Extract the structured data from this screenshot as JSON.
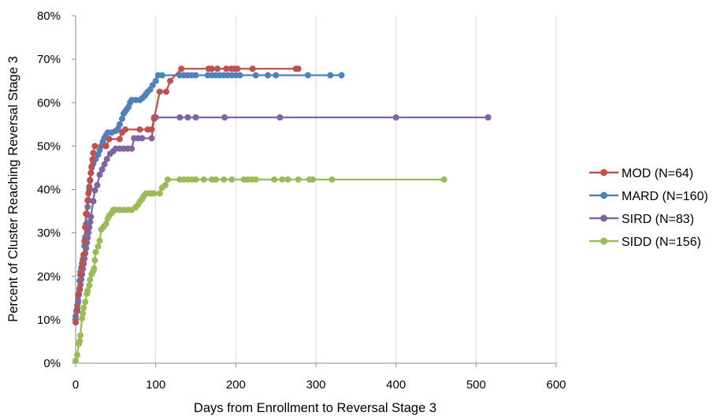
{
  "chart_data": {
    "type": "line",
    "xlabel": "Days from Enrollment to Reversal Stage 3",
    "ylabel": "Percent of Cluster Reaching Reversal Stage 3",
    "xlim": [
      0,
      600
    ],
    "ylim": [
      0,
      80
    ],
    "x_ticks": [
      "0",
      "100",
      "200",
      "300",
      "400",
      "500",
      "600"
    ],
    "y_ticks": [
      "0%",
      "10%",
      "20%",
      "30%",
      "40%",
      "50%",
      "60%",
      "70%",
      "80%"
    ],
    "grid": "vertical",
    "legend_position": "right",
    "series": [
      {
        "name": "MOD (N=64)",
        "color": "#c0504d",
        "points": [
          [
            0,
            9.4
          ],
          [
            2,
            12.5
          ],
          [
            3,
            15.6
          ],
          [
            5,
            17.2
          ],
          [
            6,
            20.3
          ],
          [
            8,
            21.9
          ],
          [
            9,
            23.4
          ],
          [
            10,
            25
          ],
          [
            11,
            28.1
          ],
          [
            12,
            31.3
          ],
          [
            13,
            34.4
          ],
          [
            15,
            37.5
          ],
          [
            16,
            39.1
          ],
          [
            17,
            40.6
          ],
          [
            18,
            42.2
          ],
          [
            19,
            43.8
          ],
          [
            20,
            45.3
          ],
          [
            21,
            46.9
          ],
          [
            22,
            48.4
          ],
          [
            24,
            50
          ],
          [
            38,
            50
          ],
          [
            42,
            51.6
          ],
          [
            55,
            51.6
          ],
          [
            58,
            53.1
          ],
          [
            62,
            53.8
          ],
          [
            80,
            53.8
          ],
          [
            90,
            53.8
          ],
          [
            95,
            53.8
          ],
          [
            98,
            56.3
          ],
          [
            105,
            62.5
          ],
          [
            113,
            62.5
          ],
          [
            118,
            65
          ],
          [
            132,
            67.8
          ],
          [
            166,
            67.8
          ],
          [
            170,
            67.8
          ],
          [
            177,
            67.8
          ],
          [
            188,
            67.8
          ],
          [
            194,
            67.8
          ],
          [
            198,
            67.8
          ],
          [
            202,
            67.8
          ],
          [
            221,
            67.8
          ],
          [
            275,
            67.8
          ],
          [
            278,
            67.8
          ]
        ]
      },
      {
        "name": "MARD (N=160)",
        "color": "#4f81bd",
        "points": [
          [
            0,
            10
          ],
          [
            2,
            12
          ],
          [
            3,
            14
          ],
          [
            4,
            16
          ],
          [
            5,
            19
          ],
          [
            6,
            21
          ],
          [
            7,
            22
          ],
          [
            8,
            23
          ],
          [
            9,
            24
          ],
          [
            10,
            25
          ],
          [
            11,
            27
          ],
          [
            12,
            29
          ],
          [
            13,
            32
          ],
          [
            14,
            34.4
          ],
          [
            15,
            36
          ],
          [
            16,
            37.5
          ],
          [
            17,
            40
          ],
          [
            18,
            42
          ],
          [
            19,
            43.8
          ],
          [
            20,
            45
          ],
          [
            22,
            46
          ],
          [
            25,
            47
          ],
          [
            28,
            48
          ],
          [
            30,
            49
          ],
          [
            32,
            50
          ],
          [
            34,
            51
          ],
          [
            36,
            51.9
          ],
          [
            38,
            52.5
          ],
          [
            40,
            53.1
          ],
          [
            45,
            53.1
          ],
          [
            50,
            53.5
          ],
          [
            53,
            54
          ],
          [
            55,
            55
          ],
          [
            58,
            56.3
          ],
          [
            60,
            57.5
          ],
          [
            62,
            58
          ],
          [
            64,
            58.5
          ],
          [
            66,
            59
          ],
          [
            68,
            60
          ],
          [
            70,
            60.6
          ],
          [
            75,
            60.6
          ],
          [
            80,
            60.6
          ],
          [
            83,
            61
          ],
          [
            86,
            61.5
          ],
          [
            88,
            62
          ],
          [
            90,
            62.5
          ],
          [
            93,
            63
          ],
          [
            96,
            64
          ],
          [
            100,
            65
          ],
          [
            103,
            66.3
          ],
          [
            108,
            66.3
          ],
          [
            130,
            66.3
          ],
          [
            135,
            66.3
          ],
          [
            140,
            66.3
          ],
          [
            145,
            66.3
          ],
          [
            150,
            66.3
          ],
          [
            165,
            66.3
          ],
          [
            170,
            66.3
          ],
          [
            175,
            66.3
          ],
          [
            180,
            66.3
          ],
          [
            185,
            66.3
          ],
          [
            190,
            66.3
          ],
          [
            195,
            66.3
          ],
          [
            200,
            66.3
          ],
          [
            205,
            66.3
          ],
          [
            225,
            66.3
          ],
          [
            240,
            66.3
          ],
          [
            250,
            66.3
          ],
          [
            290,
            66.3
          ],
          [
            318,
            66.3
          ],
          [
            332,
            66.3
          ]
        ]
      },
      {
        "name": "SIRD (N=83)",
        "color": "#8064a2",
        "points": [
          [
            0,
            10.8
          ],
          [
            1,
            12
          ],
          [
            2,
            13.3
          ],
          [
            3,
            14.5
          ],
          [
            4,
            15.7
          ],
          [
            5,
            16.9
          ],
          [
            6,
            18.1
          ],
          [
            7,
            19.3
          ],
          [
            8,
            20.5
          ],
          [
            9,
            21.7
          ],
          [
            10,
            22.9
          ],
          [
            11,
            24.1
          ],
          [
            12,
            25.3
          ],
          [
            13,
            26.5
          ],
          [
            14,
            27.7
          ],
          [
            15,
            28.9
          ],
          [
            16,
            30.1
          ],
          [
            17,
            31.3
          ],
          [
            18,
            32.5
          ],
          [
            19,
            33.7
          ],
          [
            22,
            37.3
          ],
          [
            24,
            39.8
          ],
          [
            27,
            41
          ],
          [
            30,
            43.4
          ],
          [
            33,
            44.6
          ],
          [
            36,
            45.8
          ],
          [
            39,
            47
          ],
          [
            43,
            48.2
          ],
          [
            47,
            48.8
          ],
          [
            50,
            49.4
          ],
          [
            55,
            49.4
          ],
          [
            60,
            49.4
          ],
          [
            65,
            49.4
          ],
          [
            70,
            49.4
          ],
          [
            73,
            51.8
          ],
          [
            78,
            51.8
          ],
          [
            83,
            51.8
          ],
          [
            95,
            51.8
          ],
          [
            98,
            56.6
          ],
          [
            100,
            56.6
          ],
          [
            130,
            56.6
          ],
          [
            140,
            56.6
          ],
          [
            150,
            56.6
          ],
          [
            186,
            56.6
          ],
          [
            255,
            56.6
          ],
          [
            400,
            56.6
          ],
          [
            515,
            56.6
          ]
        ]
      },
      {
        "name": "SIDD (N=156)",
        "color": "#9bbb59",
        "points": [
          [
            0,
            0.6
          ],
          [
            2,
            1.9
          ],
          [
            4,
            4.5
          ],
          [
            5,
            5.1
          ],
          [
            6,
            6.4
          ],
          [
            8,
            10.3
          ],
          [
            9,
            11.5
          ],
          [
            10,
            12.8
          ],
          [
            12,
            14.1
          ],
          [
            14,
            16
          ],
          [
            15,
            16.7
          ],
          [
            17,
            17.9
          ],
          [
            18,
            19.2
          ],
          [
            20,
            20.5
          ],
          [
            22,
            21.2
          ],
          [
            23,
            21.8
          ],
          [
            24,
            23.7
          ],
          [
            25,
            25.6
          ],
          [
            28,
            26.9
          ],
          [
            30,
            28.2
          ],
          [
            32,
            30.8
          ],
          [
            35,
            31.4
          ],
          [
            38,
            32.1
          ],
          [
            40,
            33.3
          ],
          [
            42,
            34
          ],
          [
            45,
            34.6
          ],
          [
            47,
            35.3
          ],
          [
            50,
            35.3
          ],
          [
            55,
            35.3
          ],
          [
            60,
            35.3
          ],
          [
            65,
            35.3
          ],
          [
            70,
            35.3
          ],
          [
            75,
            35.9
          ],
          [
            78,
            36.5
          ],
          [
            80,
            37.2
          ],
          [
            83,
            37.8
          ],
          [
            85,
            38.5
          ],
          [
            88,
            39.1
          ],
          [
            92,
            39.1
          ],
          [
            95,
            39.1
          ],
          [
            98,
            39.1
          ],
          [
            105,
            39.1
          ],
          [
            108,
            40.4
          ],
          [
            112,
            41
          ],
          [
            115,
            42.3
          ],
          [
            130,
            42.3
          ],
          [
            135,
            42.3
          ],
          [
            140,
            42.3
          ],
          [
            145,
            42.3
          ],
          [
            150,
            42.3
          ],
          [
            160,
            42.3
          ],
          [
            170,
            42.3
          ],
          [
            175,
            42.3
          ],
          [
            185,
            42.3
          ],
          [
            195,
            42.3
          ],
          [
            210,
            42.3
          ],
          [
            215,
            42.3
          ],
          [
            220,
            42.3
          ],
          [
            225,
            42.3
          ],
          [
            248,
            42.3
          ],
          [
            258,
            42.3
          ],
          [
            265,
            42.3
          ],
          [
            278,
            42.3
          ],
          [
            292,
            42.3
          ],
          [
            296,
            42.3
          ],
          [
            320,
            42.3
          ],
          [
            460,
            42.3
          ]
        ]
      }
    ]
  }
}
